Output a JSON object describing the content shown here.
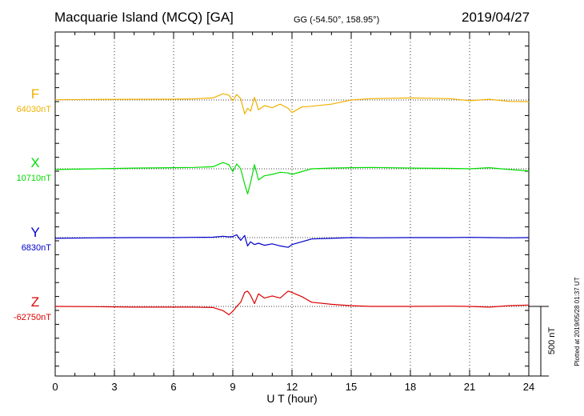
{
  "header": {
    "station": "Macquarie Island (MCQ)  [GA]",
    "coords": "GG (-54.50°, 158.95°)",
    "date": "2019/04/27"
  },
  "chart_data": {
    "type": "line",
    "title": "Macquarie Island (MCQ)  [GA]",
    "xlabel": "U T (hour)",
    "xlim": [
      0,
      24
    ],
    "xticks": [
      0,
      3,
      6,
      9,
      12,
      15,
      18,
      21,
      24
    ],
    "xtick_labels": [
      "0",
      "3",
      "6",
      "9",
      "12",
      "15",
      "18",
      "21",
      "24"
    ],
    "grid": "vertical dotted lines at each 3 hours",
    "scale_bar": {
      "label": "500 nT",
      "value_nT": 500
    },
    "footer_note": "Plotted at 2019/05/28 01:37 UT",
    "series": [
      {
        "name": "F",
        "baseline_label": "64030nT",
        "color": "#f0b000",
        "x": [
          0,
          2,
          4,
          6,
          7,
          8,
          8.5,
          8.8,
          9,
          9.2,
          9.4,
          9.6,
          9.75,
          9.9,
          10.1,
          10.3,
          10.6,
          11,
          11.4,
          11.8,
          12,
          12.5,
          13,
          14,
          15,
          16,
          18,
          20,
          21,
          22,
          23,
          24
        ],
        "values": [
          2,
          4,
          5,
          6,
          8,
          15,
          45,
          35,
          -5,
          40,
          10,
          -100,
          -60,
          -80,
          20,
          -70,
          -40,
          -55,
          -30,
          -60,
          -90,
          -50,
          -45,
          -30,
          0,
          10,
          15,
          10,
          -5,
          5,
          -10,
          -12
        ]
      },
      {
        "name": "X",
        "baseline_label": "10710nT",
        "color": "#00dd00",
        "x": [
          0,
          2,
          4,
          6,
          7,
          8,
          8.5,
          8.8,
          9,
          9.2,
          9.4,
          9.6,
          9.75,
          9.9,
          10.1,
          10.3,
          10.6,
          11,
          11.4,
          11.8,
          12,
          12.5,
          13,
          14,
          15,
          16,
          18,
          20,
          21,
          22,
          23,
          24
        ],
        "values": [
          -5,
          0,
          5,
          8,
          10,
          15,
          45,
          30,
          -20,
          35,
          0,
          -110,
          -180,
          -100,
          30,
          -80,
          -50,
          -40,
          -25,
          -30,
          -40,
          -20,
          0,
          5,
          8,
          10,
          5,
          3,
          0,
          8,
          -5,
          -15
        ]
      },
      {
        "name": "Y",
        "baseline_label": "6830nT",
        "color": "#0000cc",
        "x": [
          0,
          2,
          4,
          6,
          7,
          8,
          8.5,
          8.8,
          9,
          9.2,
          9.4,
          9.6,
          9.75,
          9.9,
          10.1,
          10.3,
          10.6,
          11,
          11.4,
          11.8,
          12,
          12.5,
          13,
          14,
          15,
          16,
          18,
          20,
          21,
          22,
          23,
          24
        ],
        "values": [
          -5,
          -2,
          0,
          0,
          2,
          3,
          10,
          5,
          8,
          20,
          -20,
          15,
          -60,
          -30,
          -50,
          -40,
          -55,
          -45,
          -60,
          -70,
          -50,
          -30,
          -10,
          -5,
          0,
          -2,
          0,
          0,
          2,
          0,
          -2,
          0
        ]
      },
      {
        "name": "Z",
        "baseline_label": "-62750nT",
        "color": "#dd0000",
        "x": [
          0,
          2,
          4,
          6,
          7,
          8,
          8.5,
          8.8,
          9,
          9.2,
          9.4,
          9.6,
          9.75,
          9.9,
          10.1,
          10.3,
          10.6,
          11,
          11.4,
          11.8,
          12,
          12.5,
          13,
          14,
          15,
          16,
          18,
          20,
          21,
          22,
          23,
          24
        ],
        "values": [
          0,
          -2,
          -5,
          -5,
          -5,
          -8,
          -30,
          -60,
          -35,
          0,
          30,
          100,
          110,
          80,
          20,
          90,
          60,
          75,
          60,
          110,
          100,
          70,
          30,
          15,
          5,
          0,
          0,
          2,
          0,
          -5,
          5,
          10
        ]
      }
    ]
  }
}
